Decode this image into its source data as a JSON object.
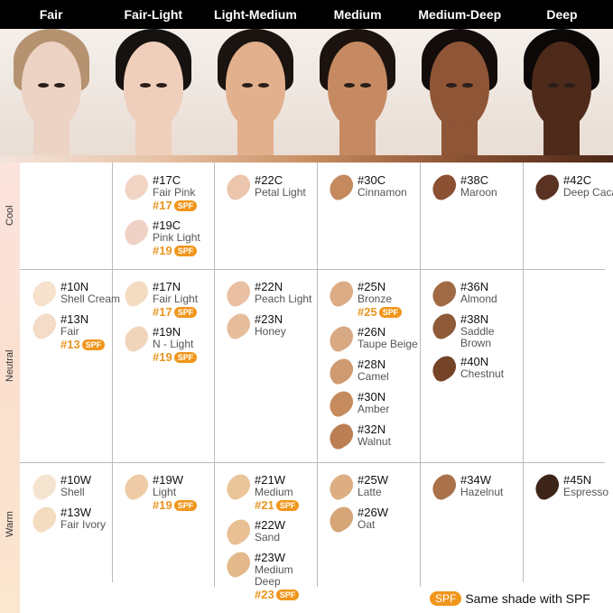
{
  "columns": [
    {
      "label": "Fair",
      "skin": "#ecd3c4",
      "hair": "#b59270"
    },
    {
      "label": "Fair-Light",
      "skin": "#efcfbb",
      "hair": "#151210"
    },
    {
      "label": "Light-Medium",
      "skin": "#e2b08c",
      "hair": "#1a1310"
    },
    {
      "label": "Medium",
      "skin": "#c68a62",
      "hair": "#1c130e"
    },
    {
      "label": "Medium-Deep",
      "skin": "#8f5537",
      "hair": "#120c0a"
    },
    {
      "label": "Deep",
      "skin": "#4e2a1a",
      "hair": "#0c0807"
    }
  ],
  "rows": [
    {
      "label": "Cool"
    },
    {
      "label": "Neutral"
    },
    {
      "label": "Warm"
    }
  ],
  "spf_badge": "SPF",
  "legend": {
    "text": "Same shade with SPF"
  },
  "cells": [
    [
      [],
      [
        {
          "code": "#17C",
          "name": "Fair Pink",
          "spf": "#17",
          "color": "#f2d4c4"
        },
        {
          "code": "#19C",
          "name": "Pink Light",
          "spf": "#19",
          "color": "#efd2c5"
        }
      ],
      [
        {
          "code": "#22C",
          "name": "Petal Light",
          "color": "#ecc5ad"
        }
      ],
      [
        {
          "code": "#30C",
          "name": "Cinnamon",
          "color": "#c48a5e"
        }
      ],
      [
        {
          "code": "#38C",
          "name": "Maroon",
          "color": "#8c5033"
        }
      ],
      [
        {
          "code": "#42C",
          "name": "Deep Cacao",
          "color": "#5a3222"
        }
      ]
    ],
    [
      [
        {
          "code": "#10N",
          "name": "Shell Cream",
          "color": "#f6e2cd"
        },
        {
          "code": "#13N",
          "name": "Fair",
          "spf": "#13",
          "color": "#f4dcc8"
        }
      ],
      [
        {
          "code": "#17N",
          "name": "Fair Light",
          "spf": "#17",
          "color": "#f4dcc2"
        },
        {
          "code": "#19N",
          "name": "N - Light",
          "spf": "#19",
          "color": "#f0d5bb"
        }
      ],
      [
        {
          "code": "#22N",
          "name": "Peach Light",
          "color": "#e9c0a2"
        },
        {
          "code": "#23N",
          "name": "Honey",
          "color": "#e6bd9a"
        }
      ],
      [
        {
          "code": "#25N",
          "name": "Bronze",
          "spf": "#25",
          "color": "#dcac87"
        },
        {
          "code": "#26N",
          "name": "Taupe Beige",
          "color": "#d9a984"
        },
        {
          "code": "#28N",
          "name": "Camel",
          "color": "#cf9a70"
        },
        {
          "code": "#30N",
          "name": "Amber",
          "color": "#c68b5e"
        },
        {
          "code": "#32N",
          "name": "Walnut",
          "color": "#bb7f53"
        }
      ],
      [
        {
          "code": "#36N",
          "name": "Almond",
          "color": "#a06a45"
        },
        {
          "code": "#38N",
          "name": "Saddle Brown",
          "color": "#8f5a38"
        },
        {
          "code": "#40N",
          "name": "Chestnut",
          "color": "#754428"
        }
      ],
      []
    ],
    [
      [
        {
          "code": "#10W",
          "name": "Shell",
          "color": "#f5e4cf"
        },
        {
          "code": "#13W",
          "name": "Fair Ivory",
          "color": "#f3dcbf"
        }
      ],
      [
        {
          "code": "#19W",
          "name": "Light",
          "spf": "#19",
          "color": "#eecba6"
        }
      ],
      [
        {
          "code": "#21W",
          "name": "Medium",
          "spf": "#21",
          "color": "#ebc59a"
        },
        {
          "code": "#22W",
          "name": "Sand",
          "color": "#e8c094"
        },
        {
          "code": "#23W",
          "name": "Medium Deep",
          "spf": "#23",
          "color": "#e3b98b"
        }
      ],
      [
        {
          "code": "#25W",
          "name": "Latte",
          "color": "#dcae82"
        },
        {
          "code": "#26W",
          "name": "Oat",
          "color": "#d6a577"
        }
      ],
      [
        {
          "code": "#34W",
          "name": "Hazelnut",
          "color": "#a9724a"
        }
      ],
      [
        {
          "code": "#45N",
          "name": "Espresso",
          "color": "#3d2419"
        }
      ]
    ]
  ]
}
